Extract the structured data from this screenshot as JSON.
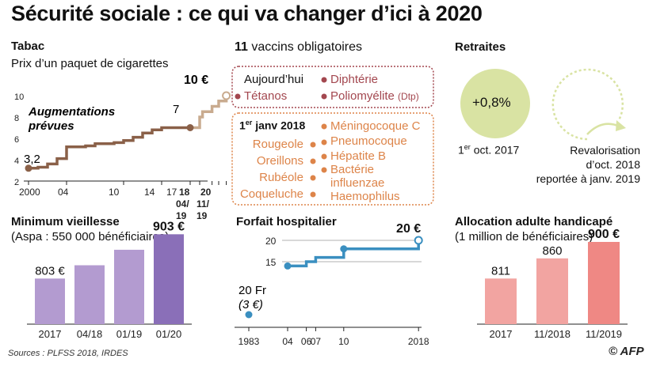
{
  "title": "Sécurité sociale : ce qui va changer d’ici à 2020",
  "colors": {
    "brown": "#8a6048",
    "brown_light": "#c9ab8f",
    "maroon": "#a3474f",
    "orange": "#dd8449",
    "olive_circle": "#d9e3a3",
    "purple": "#b39bd0",
    "purple_dark": "#8a6fb8",
    "blue": "#3a8fc0",
    "pink": "#f2a4a1",
    "pink_dark": "#ef8884"
  },
  "tabac": {
    "heading": "Tabac",
    "subtitle": "Prix d’un paquet de cigarettes",
    "annotation": "Augmentations prévues",
    "value_start": "3,2",
    "value_now": "7",
    "value_end": "10 €",
    "x_ticks": [
      "2000",
      "04",
      "10",
      "14",
      "17",
      "18",
      "04/ 19",
      "20",
      "11/ 19"
    ],
    "y_ticks": [
      "2",
      "4",
      "6",
      "8",
      "10"
    ]
  },
  "vaccins": {
    "heading_num": "11",
    "heading_text": "vaccins obligatoires",
    "today_label": "Aujourd’hui",
    "today_items": [
      "Tétanos",
      "Diphtérie",
      "Poliomyélite"
    ],
    "today_suffix": "(Dtp)",
    "new_label_sup": "er",
    "new_label_pre": "1",
    "new_label_post": "janv 2018",
    "new_left": [
      "Rougeole",
      "Oreillons",
      "Rubéole",
      "Coqueluche"
    ],
    "new_right": [
      "Méningocoque C",
      "Pneumocoque",
      "Hépatite B",
      "Bactérie",
      "influenzae",
      "Haemophilus"
    ]
  },
  "retraites": {
    "heading": "Retraites",
    "value": "+0,8%",
    "date1_pre": "1",
    "date1_sup": "er",
    "date1_post": "oct. 2017",
    "reval_lines": [
      "Revalorisation",
      "d’oct. 2018",
      "reportée à janv. 2019"
    ]
  },
  "minimum": {
    "heading": "Minimum vieillesse",
    "subtitle": "(Aspa : 550 000 bénéficiaires)"
  },
  "forfait": {
    "heading": "Forfait hospitalier",
    "label_1983_a": "20 Fr",
    "label_1983_b": "(3 €)",
    "y_ticks": [
      "15",
      "20"
    ],
    "x_ticks": [
      "1983",
      "04",
      "06",
      "07",
      "10",
      "2018"
    ]
  },
  "aah": {
    "heading": "Allocation adulte handicapé",
    "subtitle": "(1 million de bénéficiaires)"
  },
  "sources": "Sources : PLFSS 2018, IRDES",
  "credit": "© AFP",
  "chart_data": [
    {
      "type": "line",
      "id": "tabac",
      "title": "Prix d’un paquet de cigarettes",
      "series": [
        {
          "values_x": [
            2000,
            2001,
            2002,
            2003,
            2004,
            2006,
            2007,
            2009,
            2010,
            2011,
            2012,
            2013,
            2014,
            2017
          ],
          "values": [
            3.2,
            3.3,
            3.6,
            4.1,
            5.2,
            5.3,
            5.5,
            5.6,
            5.8,
            6.1,
            6.5,
            6.8,
            7.0,
            7.0
          ]
        },
        {
          "name": "Augmentations prévues",
          "values_x": [
            2017,
            2018,
            2018.3,
            2019.3,
            2020,
            2020.8
          ],
          "values": [
            7.0,
            8.0,
            8.5,
            9.0,
            9.5,
            10.0
          ]
        }
      ],
      "ylim": [
        2,
        10
      ]
    },
    {
      "type": "bar",
      "id": "minimum_vieillesse",
      "categories": [
        "2017",
        "04/18",
        "01/19",
        "01/20"
      ],
      "values": [
        803,
        833,
        868,
        903
      ],
      "labels": [
        "803 €",
        "",
        "",
        "903 €"
      ]
    },
    {
      "type": "line",
      "id": "forfait_hospitalier",
      "x": [
        1983,
        2004,
        2006,
        2007,
        2010,
        2018
      ],
      "values": [
        3,
        14,
        15,
        16,
        18,
        20
      ],
      "labels": {
        "2018": "20 €"
      },
      "ylim": [
        10,
        20
      ]
    },
    {
      "type": "bar",
      "id": "aah",
      "categories": [
        "2017",
        "11/2018",
        "11/2019"
      ],
      "values": [
        811,
        860,
        900
      ],
      "labels": [
        "811",
        "860",
        "900 €"
      ]
    }
  ]
}
